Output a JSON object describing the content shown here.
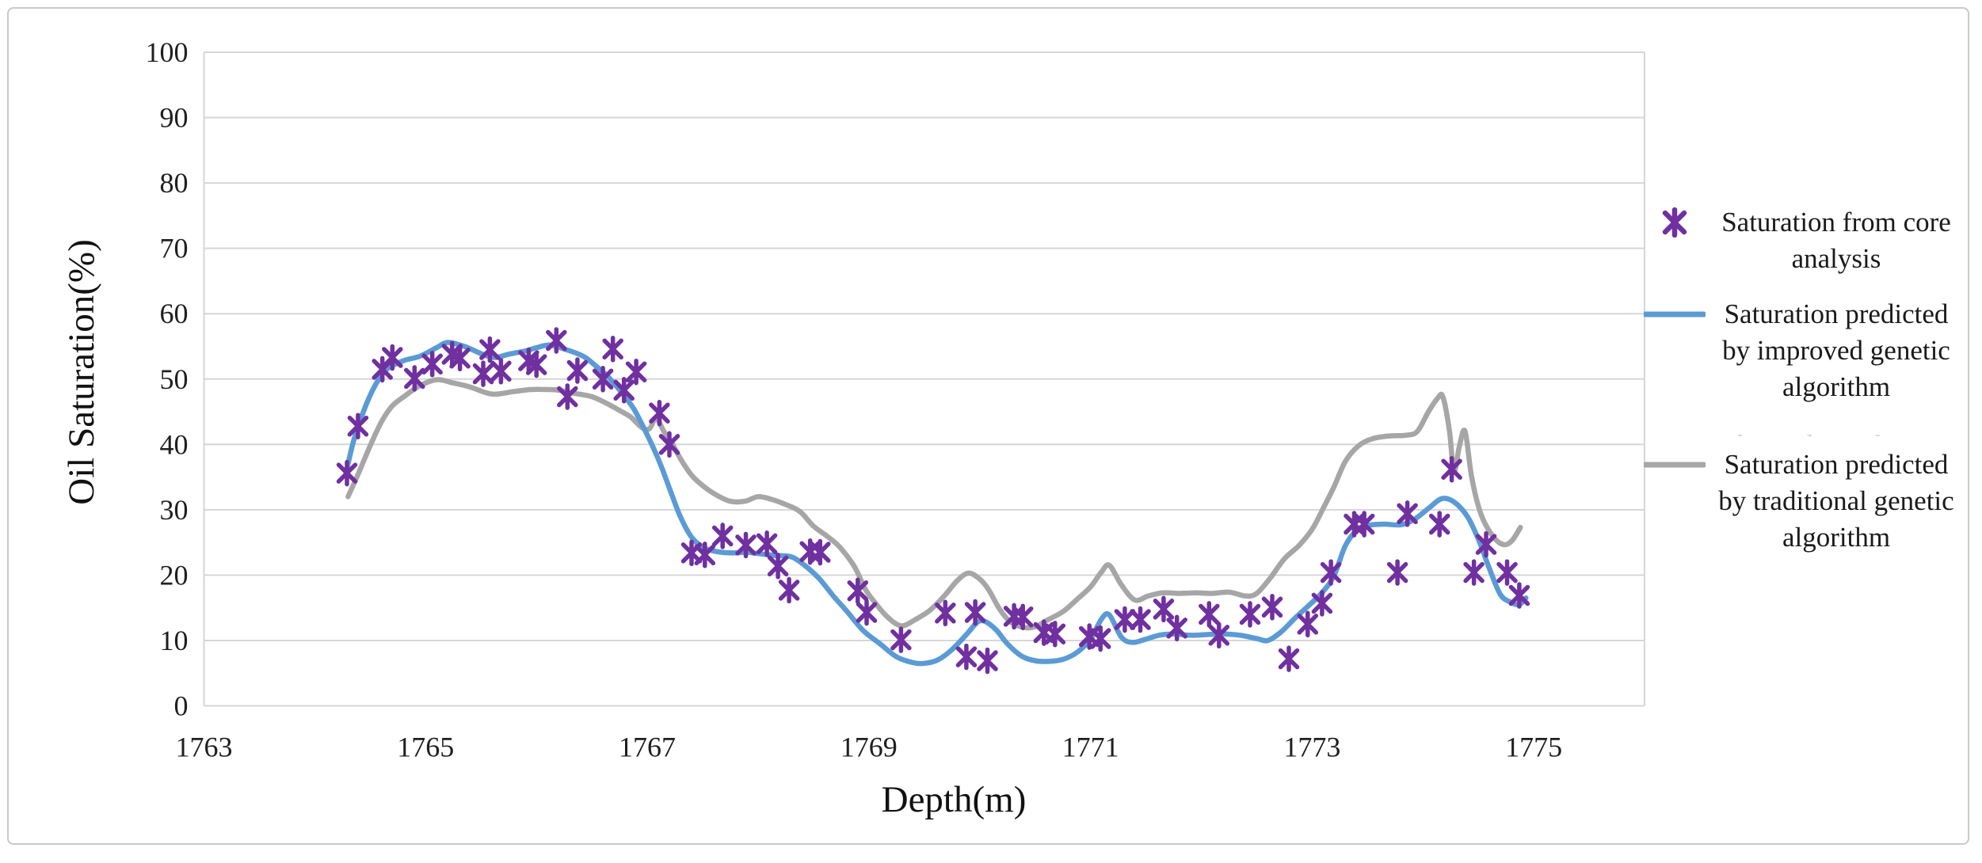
{
  "figure": {
    "background": "#ffffff",
    "border_color": "#c9c9c9"
  },
  "chart_data": {
    "type": "line+scatter",
    "title": "",
    "xlabel": "Depth(m)",
    "ylabel": "Oil Saturation(%)",
    "xlim": [
      1763,
      1776
    ],
    "ylim": [
      0,
      100
    ],
    "x_ticks": [
      1763,
      1765,
      1767,
      1769,
      1771,
      1773,
      1775
    ],
    "y_ticks": [
      0,
      10,
      20,
      30,
      40,
      50,
      60,
      70,
      80,
      90,
      100
    ],
    "grid": "horizontal",
    "gridline_color": "#d6d6d6",
    "tick_label_color": "#1f1f1f",
    "legend_position": "right",
    "series": [
      {
        "name": "Saturation from core analysis",
        "type": "scatter",
        "marker": "star-6",
        "color": "#7030A0",
        "points": [
          [
            1764.29,
            35.6
          ],
          [
            1764.39,
            42.8
          ],
          [
            1764.61,
            51.5
          ],
          [
            1764.7,
            53.3
          ],
          [
            1764.9,
            50.1
          ],
          [
            1765.06,
            52.3
          ],
          [
            1765.24,
            53.8
          ],
          [
            1765.31,
            53.2
          ],
          [
            1765.52,
            50.8
          ],
          [
            1765.58,
            54.5
          ],
          [
            1765.68,
            51.2
          ],
          [
            1765.93,
            52.8
          ],
          [
            1766.0,
            52.2
          ],
          [
            1766.18,
            55.9
          ],
          [
            1766.28,
            47.3
          ],
          [
            1766.37,
            51.3
          ],
          [
            1766.6,
            50.0
          ],
          [
            1766.69,
            54.6
          ],
          [
            1766.79,
            48.3
          ],
          [
            1766.9,
            51.1
          ],
          [
            1767.11,
            44.8
          ],
          [
            1767.2,
            40.0
          ],
          [
            1767.4,
            23.4
          ],
          [
            1767.52,
            23.1
          ],
          [
            1767.68,
            26.0
          ],
          [
            1767.89,
            24.6
          ],
          [
            1768.08,
            24.8
          ],
          [
            1768.18,
            21.4
          ],
          [
            1768.28,
            17.7
          ],
          [
            1768.47,
            23.6
          ],
          [
            1768.56,
            23.5
          ],
          [
            1768.9,
            17.6
          ],
          [
            1768.98,
            14.3
          ],
          [
            1769.29,
            10.1
          ],
          [
            1769.69,
            14.2
          ],
          [
            1769.88,
            7.5
          ],
          [
            1769.96,
            14.3
          ],
          [
            1770.07,
            6.9
          ],
          [
            1770.31,
            13.7
          ],
          [
            1770.39,
            13.6
          ],
          [
            1770.58,
            11.2
          ],
          [
            1770.68,
            11.0
          ],
          [
            1770.99,
            10.6
          ],
          [
            1771.09,
            10.3
          ],
          [
            1771.31,
            13.2
          ],
          [
            1771.45,
            13.2
          ],
          [
            1771.66,
            14.8
          ],
          [
            1771.78,
            11.9
          ],
          [
            1772.07,
            14.0
          ],
          [
            1772.16,
            10.8
          ],
          [
            1772.44,
            14.0
          ],
          [
            1772.64,
            15.1
          ],
          [
            1772.79,
            7.2
          ],
          [
            1772.96,
            12.5
          ],
          [
            1773.09,
            15.7
          ],
          [
            1773.17,
            20.4
          ],
          [
            1773.38,
            27.8
          ],
          [
            1773.47,
            27.8
          ],
          [
            1773.77,
            20.4
          ],
          [
            1773.86,
            29.4
          ],
          [
            1774.15,
            27.8
          ],
          [
            1774.26,
            36.2
          ],
          [
            1774.46,
            20.4
          ],
          [
            1774.57,
            24.7
          ],
          [
            1774.76,
            20.4
          ],
          [
            1774.87,
            16.9
          ]
        ]
      },
      {
        "name": "Saturation predicted by improved genetic algorithm",
        "type": "line",
        "color": "#5B9BD5",
        "points": [
          [
            1764.28,
            35.5
          ],
          [
            1764.35,
            40.5
          ],
          [
            1764.45,
            45.5
          ],
          [
            1764.55,
            49.2
          ],
          [
            1764.65,
            51.5
          ],
          [
            1764.8,
            52.8
          ],
          [
            1764.95,
            53.5
          ],
          [
            1765.1,
            54.8
          ],
          [
            1765.2,
            55.6
          ],
          [
            1765.35,
            55.0
          ],
          [
            1765.5,
            53.9
          ],
          [
            1765.62,
            53.3
          ],
          [
            1765.75,
            53.8
          ],
          [
            1765.9,
            54.3
          ],
          [
            1766.0,
            54.8
          ],
          [
            1766.12,
            55.2
          ],
          [
            1766.25,
            54.6
          ],
          [
            1766.37,
            53.9
          ],
          [
            1766.45,
            53.2
          ],
          [
            1766.55,
            51.8
          ],
          [
            1766.65,
            50.3
          ],
          [
            1766.78,
            47.7
          ],
          [
            1766.88,
            45.4
          ],
          [
            1766.97,
            42.5
          ],
          [
            1767.06,
            39.3
          ],
          [
            1767.13,
            36.5
          ],
          [
            1767.22,
            32.4
          ],
          [
            1767.3,
            28.9
          ],
          [
            1767.4,
            25.8
          ],
          [
            1767.5,
            24.3
          ],
          [
            1767.6,
            23.7
          ],
          [
            1767.75,
            23.4
          ],
          [
            1767.9,
            23.5
          ],
          [
            1768.0,
            23.3
          ],
          [
            1768.15,
            23.0
          ],
          [
            1768.3,
            22.8
          ],
          [
            1768.42,
            21.5
          ],
          [
            1768.55,
            19.5
          ],
          [
            1768.68,
            16.8
          ],
          [
            1768.8,
            14.5
          ],
          [
            1768.95,
            11.5
          ],
          [
            1769.1,
            9.5
          ],
          [
            1769.25,
            7.5
          ],
          [
            1769.4,
            6.6
          ],
          [
            1769.5,
            6.5
          ],
          [
            1769.62,
            7.0
          ],
          [
            1769.75,
            8.6
          ],
          [
            1769.88,
            10.9
          ],
          [
            1769.98,
            12.8
          ],
          [
            1770.05,
            12.9
          ],
          [
            1770.15,
            11.6
          ],
          [
            1770.25,
            9.5
          ],
          [
            1770.38,
            7.6
          ],
          [
            1770.5,
            6.9
          ],
          [
            1770.62,
            6.8
          ],
          [
            1770.75,
            7.1
          ],
          [
            1770.88,
            8.2
          ],
          [
            1771.0,
            10.2
          ],
          [
            1771.1,
            13.3
          ],
          [
            1771.17,
            13.9
          ],
          [
            1771.28,
            10.5
          ],
          [
            1771.38,
            9.7
          ],
          [
            1771.5,
            10.2
          ],
          [
            1771.62,
            10.8
          ],
          [
            1771.75,
            11.0
          ],
          [
            1771.9,
            10.8
          ],
          [
            1772.05,
            10.9
          ],
          [
            1772.2,
            11.0
          ],
          [
            1772.35,
            10.8
          ],
          [
            1772.5,
            10.3
          ],
          [
            1772.6,
            10.0
          ],
          [
            1772.72,
            11.3
          ],
          [
            1772.85,
            13.5
          ],
          [
            1772.98,
            15.5
          ],
          [
            1773.1,
            17.5
          ],
          [
            1773.2,
            20.0
          ],
          [
            1773.3,
            24.5
          ],
          [
            1773.4,
            26.8
          ],
          [
            1773.5,
            27.6
          ],
          [
            1773.65,
            27.8
          ],
          [
            1773.8,
            27.7
          ],
          [
            1773.92,
            28.5
          ],
          [
            1774.05,
            30.2
          ],
          [
            1774.17,
            31.7
          ],
          [
            1774.28,
            31.2
          ],
          [
            1774.4,
            29.0
          ],
          [
            1774.5,
            25.5
          ],
          [
            1774.6,
            21.0
          ],
          [
            1774.7,
            17.0
          ],
          [
            1774.8,
            15.8
          ],
          [
            1774.87,
            15.5
          ],
          [
            1774.93,
            16.5
          ]
        ]
      },
      {
        "name": "Saturation predicted by traditional genetic algorithm",
        "type": "line",
        "color": "#A6A6A6",
        "points": [
          [
            1764.3,
            32.0
          ],
          [
            1764.4,
            35.8
          ],
          [
            1764.5,
            39.8
          ],
          [
            1764.6,
            43.4
          ],
          [
            1764.7,
            45.9
          ],
          [
            1764.82,
            47.5
          ],
          [
            1764.95,
            49.0
          ],
          [
            1765.1,
            49.9
          ],
          [
            1765.25,
            49.4
          ],
          [
            1765.4,
            48.8
          ],
          [
            1765.6,
            47.7
          ],
          [
            1765.8,
            48.1
          ],
          [
            1765.95,
            48.4
          ],
          [
            1766.1,
            48.4
          ],
          [
            1766.2,
            48.3
          ],
          [
            1766.35,
            47.8
          ],
          [
            1766.5,
            47.3
          ],
          [
            1766.62,
            46.4
          ],
          [
            1766.75,
            45.2
          ],
          [
            1766.85,
            44.2
          ],
          [
            1766.95,
            42.6
          ],
          [
            1767.02,
            42.4
          ],
          [
            1767.08,
            44.0
          ],
          [
            1767.15,
            42.0
          ],
          [
            1767.22,
            40.3
          ],
          [
            1767.3,
            37.8
          ],
          [
            1767.4,
            35.3
          ],
          [
            1767.5,
            33.7
          ],
          [
            1767.62,
            32.3
          ],
          [
            1767.75,
            31.3
          ],
          [
            1767.88,
            31.3
          ],
          [
            1768.0,
            32.0
          ],
          [
            1768.12,
            31.6
          ],
          [
            1768.25,
            30.8
          ],
          [
            1768.38,
            29.7
          ],
          [
            1768.5,
            27.5
          ],
          [
            1768.62,
            26.0
          ],
          [
            1768.72,
            24.6
          ],
          [
            1768.8,
            23.0
          ],
          [
            1768.88,
            21.0
          ],
          [
            1768.97,
            17.8
          ],
          [
            1769.06,
            15.7
          ],
          [
            1769.15,
            13.9
          ],
          [
            1769.25,
            12.5
          ],
          [
            1769.32,
            12.3
          ],
          [
            1769.42,
            13.2
          ],
          [
            1769.55,
            14.6
          ],
          [
            1769.68,
            16.8
          ],
          [
            1769.8,
            19.2
          ],
          [
            1769.9,
            20.3
          ],
          [
            1770.0,
            19.4
          ],
          [
            1770.08,
            17.8
          ],
          [
            1770.18,
            14.8
          ],
          [
            1770.28,
            12.8
          ],
          [
            1770.4,
            12.0
          ],
          [
            1770.5,
            12.1
          ],
          [
            1770.62,
            13.2
          ],
          [
            1770.75,
            14.4
          ],
          [
            1770.88,
            16.3
          ],
          [
            1771.0,
            18.2
          ],
          [
            1771.1,
            20.5
          ],
          [
            1771.17,
            21.5
          ],
          [
            1771.28,
            18.5
          ],
          [
            1771.4,
            16.2
          ],
          [
            1771.52,
            16.8
          ],
          [
            1771.65,
            17.3
          ],
          [
            1771.8,
            17.2
          ],
          [
            1771.95,
            17.3
          ],
          [
            1772.1,
            17.2
          ],
          [
            1772.25,
            17.4
          ],
          [
            1772.4,
            16.8
          ],
          [
            1772.5,
            17.2
          ],
          [
            1772.62,
            19.5
          ],
          [
            1772.75,
            22.5
          ],
          [
            1772.88,
            24.5
          ],
          [
            1773.0,
            27.0
          ],
          [
            1773.1,
            30.2
          ],
          [
            1773.2,
            33.6
          ],
          [
            1773.3,
            37.4
          ],
          [
            1773.42,
            39.8
          ],
          [
            1773.55,
            40.9
          ],
          [
            1773.7,
            41.3
          ],
          [
            1773.85,
            41.4
          ],
          [
            1773.95,
            42.0
          ],
          [
            1774.05,
            45.0
          ],
          [
            1774.13,
            47.0
          ],
          [
            1774.18,
            47.3
          ],
          [
            1774.24,
            42.0
          ],
          [
            1774.28,
            35.8
          ],
          [
            1774.33,
            39.8
          ],
          [
            1774.38,
            42.0
          ],
          [
            1774.44,
            35.0
          ],
          [
            1774.52,
            29.5
          ],
          [
            1774.62,
            26.2
          ],
          [
            1774.72,
            24.7
          ],
          [
            1774.8,
            25.2
          ],
          [
            1774.88,
            27.3
          ]
        ]
      }
    ]
  },
  "legend": {
    "artifact_text": "by traditional genetic"
  }
}
